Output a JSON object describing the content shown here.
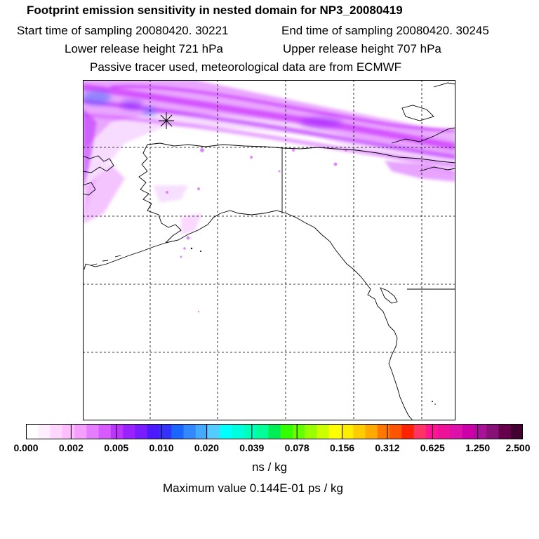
{
  "header": {
    "title": "Footprint emission sensitivity in nested domain for NP3_20080419",
    "start_label": "Start time of sampling 20080420. 30221",
    "end_label": "End time of sampling 20080420. 30245",
    "lower_label": "Lower release height  721 hPa",
    "upper_label": "Upper release height  707 hPa",
    "tracer_note": "Passive tracer used, meteorological data are from ECMWF"
  },
  "colorbar": {
    "colors": [
      "#ffffff",
      "#ffeeff",
      "#ffd6ff",
      "#ffbdff",
      "#f5a0ff",
      "#e67dff",
      "#d65aff",
      "#bf33ff",
      "#9a22ff",
      "#7a1cff",
      "#4d1aff",
      "#3333ff",
      "#1a66ff",
      "#3388ff",
      "#44aaff",
      "#55ccff",
      "#00ffff",
      "#00ffdd",
      "#00ffbb",
      "#00ff99",
      "#00ee55",
      "#33ff00",
      "#66ff00",
      "#99ff00",
      "#ccff00",
      "#ffff00",
      "#ffee00",
      "#ffcc00",
      "#ffaa00",
      "#ff7700",
      "#ff5500",
      "#ff2200",
      "#ff3366",
      "#ff1493",
      "#ee1199",
      "#dd11aa",
      "#cc00aa",
      "#aa1199",
      "#881177",
      "#66004d",
      "#440033"
    ],
    "tick_labels": [
      "0.000",
      "0.002",
      "0.005",
      "0.010",
      "0.020",
      "0.039",
      "0.078",
      "0.156",
      "0.312",
      "0.625",
      "1.250",
      "2.500"
    ],
    "units": "ns / kg",
    "max_value_text": "Maximum value  0.144E-01 ps / kg"
  },
  "map": {
    "plume_color": "#cc33ff",
    "plume_dark": "#9a22ff",
    "hot_color": "#4d66ff",
    "coast_color": "#000000",
    "grid_color": "#000000"
  }
}
